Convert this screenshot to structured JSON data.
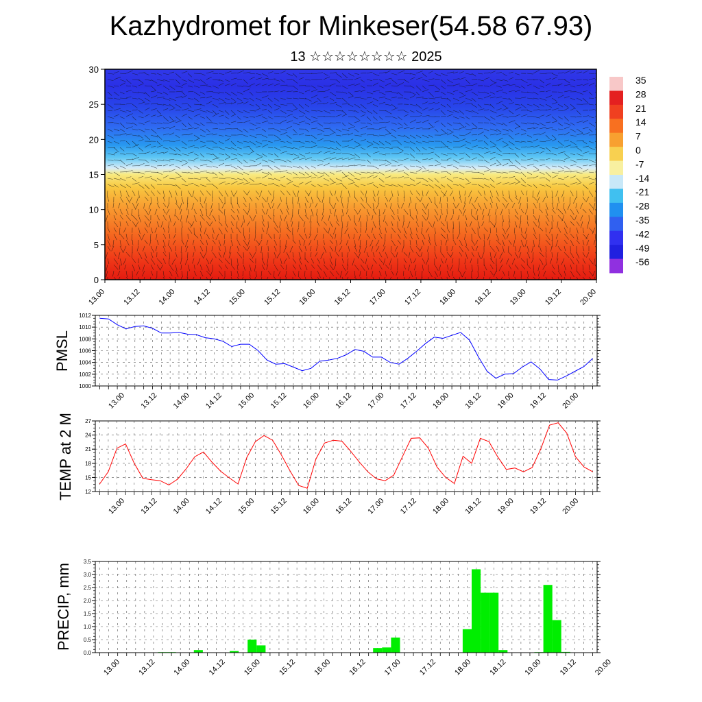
{
  "header": {
    "title": "Kazhydromet for Minkeser(54.58 67.93)",
    "subtitle": "13 ☆☆☆☆☆☆☆☆ 2025"
  },
  "time_labels": [
    "13.00",
    "13.12",
    "14.00",
    "14.12",
    "15.00",
    "15.12",
    "16.00",
    "16.12",
    "17.00",
    "17.12",
    "18.00",
    "18.12",
    "19.00",
    "19.12",
    "20.00"
  ],
  "chart_data": [
    {
      "type": "heatmap",
      "name": "temperature-height",
      "ylim": [
        0,
        30
      ],
      "yticks": [
        0,
        5,
        10,
        15,
        20,
        25,
        30
      ],
      "colorbar_labels": [
        "35",
        "28",
        "21",
        "14",
        "7",
        "0",
        "-7",
        "-14",
        "-21",
        "-28",
        "-35",
        "-42",
        "-49",
        "-56"
      ],
      "colorbar_colors": [
        "#f8c8c8",
        "#e42020",
        "#f04020",
        "#f87020",
        "#f8a030",
        "#f8d050",
        "#f8f0a0",
        "#c8e8f8",
        "#40c0f0",
        "#2090f0",
        "#3060f0",
        "#3030f0",
        "#2020e0",
        "#9030e0"
      ],
      "overlay": "wind barbs"
    },
    {
      "type": "line",
      "name": "pmsl",
      "ylabel": "PMSL",
      "ylim": [
        1000,
        1012
      ],
      "yticks": [
        1000,
        1002,
        1004,
        1006,
        1008,
        1010,
        1012
      ],
      "color": "#0000ff",
      "values": [
        1011.5,
        1011.4,
        1010.4,
        1009.7,
        1010.1,
        1010.2,
        1009.8,
        1009.0,
        1009.0,
        1009.1,
        1008.8,
        1008.7,
        1008.2,
        1008.0,
        1007.6,
        1006.7,
        1007.1,
        1007.1,
        1006.0,
        1004.4,
        1003.7,
        1003.8,
        1003.2,
        1002.6,
        1003.0,
        1004.2,
        1004.4,
        1004.7,
        1005.3,
        1006.2,
        1005.9,
        1004.9,
        1004.9,
        1004.0,
        1003.7,
        1004.7,
        1005.9,
        1007.2,
        1008.3,
        1008.1,
        1008.6,
        1009.1,
        1007.8,
        1005.0,
        1002.5,
        1001.3,
        1002.0,
        1002.1,
        1003.2,
        1004.1,
        1002.9,
        1001.1,
        1001.0,
        1001.7,
        1002.5,
        1003.3,
        1004.7
      ]
    },
    {
      "type": "line",
      "name": "temp2m",
      "ylabel": "TEMP at 2 M",
      "ylim": [
        12,
        27
      ],
      "yticks": [
        12,
        15,
        18,
        21,
        24,
        27
      ],
      "color": "#ff0000",
      "values": [
        13.6,
        16.2,
        21.2,
        22.1,
        18.0,
        14.8,
        14.5,
        14.3,
        13.4,
        14.6,
        16.8,
        19.4,
        20.4,
        18.2,
        16.3,
        14.9,
        13.6,
        19.2,
        22.6,
        23.9,
        22.9,
        19.8,
        16.4,
        13.3,
        12.7,
        18.9,
        22.3,
        22.9,
        22.7,
        20.6,
        18.3,
        16.2,
        14.7,
        14.3,
        15.5,
        19.4,
        23.3,
        23.4,
        21.2,
        17.2,
        15.0,
        13.7,
        19.5,
        18.0,
        23.3,
        22.6,
        19.4,
        16.7,
        17.0,
        16.2,
        17.1,
        21.1,
        26.1,
        26.6,
        24.4,
        19.4,
        17.2,
        16.2
      ]
    },
    {
      "type": "bar",
      "name": "precip",
      "ylabel": "PRECIP, mm",
      "ylim": [
        0,
        3.5
      ],
      "yticks": [
        "0.0",
        "0.5",
        "1.0",
        "1.5",
        "2.0",
        "2.5",
        "3.0",
        "3.5"
      ],
      "color": "#00ee00",
      "values": [
        0,
        0,
        0,
        0,
        0,
        0,
        0,
        0.02,
        0.02,
        0.01,
        0,
        0.1,
        0,
        0,
        0,
        0.06,
        0,
        0.5,
        0.28,
        0,
        0,
        0,
        0,
        0,
        0,
        0,
        0,
        0,
        0,
        0,
        0,
        0.18,
        0.2,
        0.58,
        0,
        0,
        0,
        0,
        0,
        0,
        0,
        0.9,
        3.2,
        2.3,
        2.3,
        0.1,
        0,
        0,
        0,
        0.02,
        2.6,
        1.25,
        0.03,
        0,
        0,
        0
      ]
    }
  ]
}
